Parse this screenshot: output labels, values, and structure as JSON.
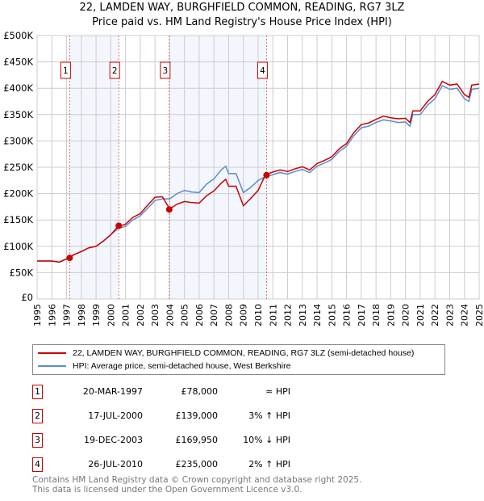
{
  "title": "22, LAMDEN WAY, BURGHFIELD COMMON, READING, RG7 3LZ",
  "subtitle": "Price paid vs. HM Land Registry's House Price Index (HPI)",
  "chart_data": {
    "type": "line",
    "xlim": [
      1995,
      2025
    ],
    "ylim": [
      0,
      500000
    ],
    "x_ticks": [
      "1995",
      "1996",
      "1997",
      "1998",
      "1999",
      "2000",
      "2001",
      "2002",
      "2003",
      "2004",
      "2005",
      "2006",
      "2007",
      "2008",
      "2009",
      "2010",
      "2011",
      "2012",
      "2013",
      "2014",
      "2015",
      "2016",
      "2017",
      "2018",
      "2019",
      "2020",
      "2021",
      "2022",
      "2023",
      "2024",
      "2025"
    ],
    "y_ticks": [
      {
        "v": 0,
        "label": "£0"
      },
      {
        "v": 50000,
        "label": "£50K"
      },
      {
        "v": 100000,
        "label": "£100K"
      },
      {
        "v": 150000,
        "label": "£150K"
      },
      {
        "v": 200000,
        "label": "£200K"
      },
      {
        "v": 250000,
        "label": "£250K"
      },
      {
        "v": 300000,
        "label": "£300K"
      },
      {
        "v": 350000,
        "label": "£350K"
      },
      {
        "v": 400000,
        "label": "£400K"
      },
      {
        "v": 450000,
        "label": "£450K"
      },
      {
        "v": 500000,
        "label": "£500K"
      }
    ],
    "grid": true,
    "x": [
      1995,
      1996,
      1996.5,
      1997,
      1997.5,
      1998,
      1998.5,
      1999,
      1999.5,
      2000,
      2000.5,
      2001,
      2001.5,
      2002,
      2002.5,
      2003,
      2003.5,
      2004,
      2004.5,
      2005,
      2005.5,
      2006,
      2006.5,
      2007,
      2007.5,
      2007.8,
      2008,
      2008.5,
      2009,
      2009.5,
      2010,
      2010.5,
      2011,
      2011.5,
      2012,
      2012.5,
      2013,
      2013.5,
      2014,
      2014.5,
      2015,
      2015.5,
      2016,
      2016.5,
      2017,
      2017.5,
      2018,
      2018.5,
      2019,
      2019.5,
      2020,
      2020.3,
      2020.5,
      2021,
      2021.5,
      2022,
      2022.5,
      2023,
      2023.5,
      2024,
      2024.3,
      2024.5,
      2025
    ],
    "series": [
      {
        "name": "22, LAMDEN WAY, BURGHFIELD COMMON, READING, RG7 3LZ (semi-detached house)",
        "color": "#cc0000",
        "values": [
          72000,
          72000,
          70000,
          76000,
          84000,
          90000,
          97000,
          100000,
          110000,
          122000,
          138000,
          142000,
          155000,
          162000,
          178000,
          193000,
          194000,
          171000,
          180000,
          185000,
          183000,
          182000,
          196000,
          205000,
          220000,
          227000,
          214000,
          214000,
          177000,
          191000,
          206000,
          236000,
          241000,
          245000,
          242000,
          247000,
          251000,
          245000,
          257000,
          263000,
          270000,
          285000,
          295000,
          316000,
          331000,
          334000,
          341000,
          347000,
          344000,
          342000,
          343000,
          335000,
          357000,
          357000,
          375000,
          388000,
          413000,
          406000,
          408000,
          388000,
          383000,
          406000,
          408000
        ]
      },
      {
        "name": "HPI: Average price, semi-detached house, West Berkshire",
        "color": "#5b8bd0",
        "values": [
          72000,
          72000,
          70000,
          76000,
          84000,
          90000,
          97000,
          100000,
          110000,
          122000,
          134000,
          138000,
          150000,
          158000,
          172000,
          187000,
          190000,
          190000,
          200000,
          206000,
          203000,
          202000,
          218000,
          228000,
          245000,
          252000,
          238000,
          238000,
          202000,
          212000,
          225000,
          232000,
          236000,
          240000,
          237000,
          242000,
          246000,
          240000,
          252000,
          258000,
          265000,
          280000,
          290000,
          310000,
          325000,
          328000,
          335000,
          340000,
          338000,
          335000,
          336000,
          328000,
          350000,
          350000,
          368000,
          380000,
          405000,
          398000,
          400000,
          380000,
          375000,
          398000,
          400000
        ]
      }
    ],
    "sales": [
      {
        "n": "1",
        "x": 1997.21,
        "price": 78000,
        "date": "20-MAR-1997",
        "price_label": "£78,000",
        "hpi": "≈ HPI"
      },
      {
        "n": "2",
        "x": 2000.54,
        "price": 139000,
        "date": "17-JUL-2000",
        "price_label": "£139,000",
        "hpi": "3% ↑ HPI"
      },
      {
        "n": "3",
        "x": 2003.97,
        "price": 169950,
        "date": "19-DEC-2003",
        "price_label": "£169,950",
        "hpi": "10% ↓ HPI"
      },
      {
        "n": "4",
        "x": 2010.57,
        "price": 235000,
        "date": "26-JUL-2010",
        "price_label": "£235,000",
        "hpi": "2% ↑ HPI"
      }
    ],
    "shaded": [
      [
        1997.21,
        2000.54
      ],
      [
        2003.97,
        2010.57
      ]
    ],
    "legend_position": "below"
  },
  "legend": {
    "property": "22, LAMDEN WAY, BURGHFIELD COMMON, READING, RG7 3LZ (semi-detached house)",
    "hpi": "HPI: Average price, semi-detached house, West Berkshire"
  },
  "footer": {
    "line1": "Contains HM Land Registry data © Crown copyright and database right 2025.",
    "line2": "This data is licensed under the Open Government Licence v3.0."
  }
}
